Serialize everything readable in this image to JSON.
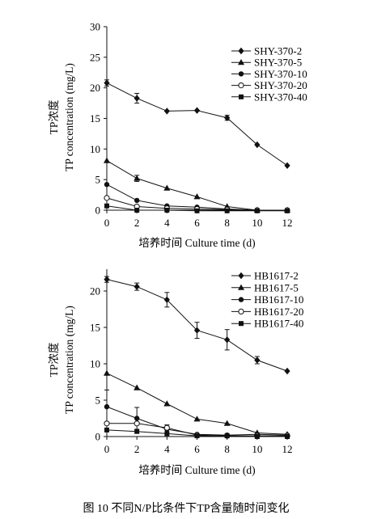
{
  "caption": "图 10   不同N/P比条件下TP含量随时间变化",
  "chart_data": [
    {
      "type": "line",
      "xlabel": "培养时间 Culture time (d)",
      "ylabel_cn": "TP浓度",
      "ylabel_en": "TP concentration (mg/L)",
      "xlim": [
        0,
        12
      ],
      "ylim": [
        0,
        30
      ],
      "xticks": [
        0,
        2,
        4,
        6,
        8,
        10,
        12
      ],
      "yticks": [
        0,
        5,
        10,
        15,
        20,
        25,
        30
      ],
      "legend_position": "top-right",
      "grid": false,
      "x": [
        0,
        2,
        4,
        6,
        8,
        10,
        12
      ],
      "series": [
        {
          "name": "SHY-370-2",
          "marker": "diamond",
          "values": [
            20.8,
            18.3,
            16.2,
            16.3,
            15.1,
            10.7,
            7.3
          ],
          "errors": [
            0.5,
            0.8,
            0,
            0,
            0.4,
            0,
            0
          ]
        },
        {
          "name": "SHY-370-5",
          "marker": "triangle",
          "values": [
            8.1,
            5.2,
            3.6,
            2.2,
            0.6,
            0.0,
            0.0
          ],
          "errors": [
            0,
            0.5,
            0,
            0,
            0,
            0,
            0
          ]
        },
        {
          "name": "SHY-370-10",
          "marker": "circle",
          "values": [
            4.2,
            1.6,
            0.7,
            0.5,
            0.2,
            0.0,
            0.0
          ],
          "errors": [
            0,
            0,
            0,
            0,
            0,
            0,
            0
          ]
        },
        {
          "name": "SHY-370-20",
          "marker": "circle-open",
          "values": [
            2.0,
            0.6,
            0.3,
            0.2,
            0.1,
            0.0,
            0.0
          ],
          "errors": [
            0,
            0,
            0,
            0,
            0,
            0,
            0
          ]
        },
        {
          "name": "SHY-370-40",
          "marker": "square",
          "values": [
            0.7,
            0.0,
            0.0,
            -0.1,
            -0.1,
            -0.1,
            -0.1
          ],
          "errors": [
            0,
            0,
            0,
            0,
            0,
            0,
            0
          ]
        }
      ]
    },
    {
      "type": "line",
      "xlabel": "培养时间 Culture time (d)",
      "ylabel_cn": "TP浓度",
      "ylabel_en": "TP concentration (mg/L)",
      "xlim": [
        0,
        12
      ],
      "ylim": [
        0,
        23
      ],
      "xticks": [
        0,
        2,
        4,
        6,
        8,
        10,
        12
      ],
      "yticks": [
        0,
        5,
        10,
        15,
        20
      ],
      "legend_position": "top-right",
      "grid": false,
      "x": [
        0,
        2,
        4,
        6,
        8,
        10,
        12
      ],
      "series": [
        {
          "name": "HB1617-2",
          "marker": "diamond",
          "values": [
            21.6,
            20.6,
            18.8,
            14.6,
            13.3,
            10.5,
            9.0
          ],
          "errors": [
            0.4,
            0.5,
            1.0,
            1.1,
            1.4,
            0.5,
            0
          ]
        },
        {
          "name": "HB1617-5",
          "marker": "triangle",
          "values": [
            8.7,
            6.7,
            4.5,
            2.4,
            1.8,
            0.5,
            0.3
          ],
          "errors": [
            0,
            0,
            0,
            0,
            0,
            0,
            0
          ]
        },
        {
          "name": "HB1617-10",
          "marker": "circle",
          "values": [
            4.1,
            2.5,
            1.0,
            0.3,
            0.2,
            0.3,
            0.2
          ],
          "errors": [
            2.3,
            1.5,
            0.6,
            0,
            0,
            0,
            0
          ]
        },
        {
          "name": "HB1617-20",
          "marker": "circle-open",
          "values": [
            1.8,
            1.8,
            1.2,
            0.2,
            0.1,
            0.1,
            0.1
          ],
          "errors": [
            0,
            0,
            0,
            0,
            0,
            0,
            0
          ]
        },
        {
          "name": "HB1617-40",
          "marker": "square",
          "values": [
            0.9,
            0.7,
            0.4,
            0.1,
            0.1,
            0.0,
            0.0
          ],
          "errors": [
            0,
            0,
            0,
            0,
            0,
            0,
            0
          ]
        }
      ]
    }
  ]
}
